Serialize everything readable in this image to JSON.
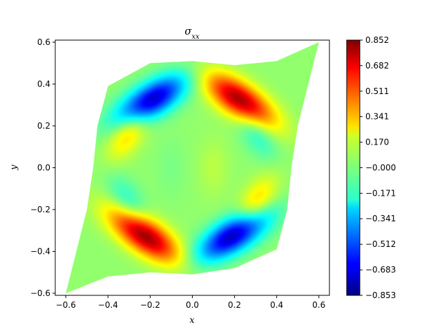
{
  "chart_data": {
    "type": "heatmap",
    "title": "σxx",
    "title_base": "σ",
    "title_sub": "xx",
    "xlabel": "x",
    "ylabel": "y",
    "xlim": [
      -0.65,
      0.65
    ],
    "ylim": [
      -0.61,
      0.61
    ],
    "x_ticks": [
      -0.6,
      -0.4,
      -0.2,
      0.0,
      0.2,
      0.4,
      0.6
    ],
    "x_tick_labels": [
      "−0.6",
      "−0.4",
      "−0.2",
      "0.0",
      "0.2",
      "0.4",
      "0.6"
    ],
    "y_ticks": [
      -0.6,
      -0.4,
      -0.2,
      0.0,
      0.2,
      0.4,
      0.6
    ],
    "y_tick_labels": [
      "−0.6",
      "−0.4",
      "−0.2",
      "0.0",
      "0.2",
      "0.4",
      "0.6"
    ],
    "colormap": "jet",
    "colorbar": {
      "min": -0.853,
      "max": 0.852,
      "ticks": [
        0.852,
        0.682,
        0.511,
        0.341,
        0.17,
        -0.0,
        -0.171,
        -0.341,
        -0.512,
        -0.683,
        -0.853
      ],
      "tick_labels": [
        "0.852",
        "0.682",
        "0.511",
        "0.341",
        "0.170",
        "−0.000",
        "−0.171",
        "−0.341",
        "−0.512",
        "−0.683",
        "−0.853"
      ]
    },
    "domain_outline": [
      [
        -0.6,
        -0.6
      ],
      [
        -0.4,
        -0.52
      ],
      [
        -0.2,
        -0.5
      ],
      [
        0.0,
        -0.51
      ],
      [
        0.2,
        -0.48
      ],
      [
        0.4,
        -0.39
      ],
      [
        0.45,
        -0.2
      ],
      [
        0.47,
        0.0
      ],
      [
        0.5,
        0.2
      ],
      [
        0.6,
        0.6
      ],
      [
        0.4,
        0.51
      ],
      [
        0.2,
        0.49
      ],
      [
        0.0,
        0.51
      ],
      [
        -0.2,
        0.5
      ],
      [
        -0.4,
        0.39
      ],
      [
        -0.45,
        0.2
      ],
      [
        -0.47,
        0.0
      ],
      [
        -0.5,
        -0.2
      ]
    ],
    "background_value": 0.03,
    "features": [
      {
        "x": -0.2,
        "y": 0.32,
        "value": -0.8
      },
      {
        "x": 0.23,
        "y": 0.32,
        "value": 0.8
      },
      {
        "x": -0.23,
        "y": -0.32,
        "value": 0.82
      },
      {
        "x": 0.2,
        "y": -0.32,
        "value": -0.82
      },
      {
        "x": -0.3,
        "y": 0.18,
        "value": 0.3
      },
      {
        "x": 0.3,
        "y": 0.18,
        "value": -0.22
      },
      {
        "x": -0.3,
        "y": -0.18,
        "value": -0.22
      },
      {
        "x": 0.3,
        "y": -0.18,
        "value": 0.3
      },
      {
        "x": 0.1,
        "y": 0.0,
        "value": 0.07
      },
      {
        "x": -0.1,
        "y": 0.0,
        "value": -0.04
      }
    ]
  }
}
